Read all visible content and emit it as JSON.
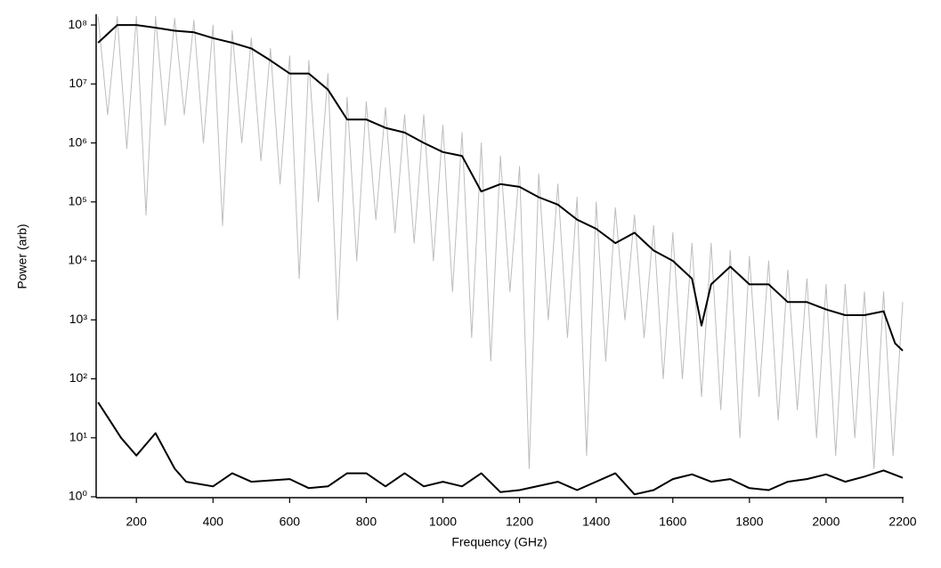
{
  "chart_data": {
    "type": "line",
    "log_y": true,
    "xlabel": "Frequency (GHz)",
    "ylabel": "Power (arb)",
    "xlim": [
      95,
      2200
    ],
    "xticks": [
      200,
      400,
      600,
      800,
      1000,
      1200,
      1400,
      1600,
      1800,
      2000,
      2200
    ],
    "ylim": [
      1,
      150000000
    ],
    "yticks": [
      {
        "value": 1,
        "label": "10⁰"
      },
      {
        "value": 10,
        "label": "10¹"
      },
      {
        "value": 100,
        "label": "10²"
      },
      {
        "value": 1000,
        "label": "10³"
      },
      {
        "value": 10000,
        "label": "10⁴"
      },
      {
        "value": 100000,
        "label": "10⁵"
      },
      {
        "value": 1000000,
        "label": "10⁶"
      },
      {
        "value": 10000000,
        "label": "10⁷"
      },
      {
        "value": 100000000,
        "label": "10⁸"
      }
    ],
    "series": [
      {
        "color": "#bdbdbd",
        "width": 1,
        "x": [
          100,
          125,
          150,
          175,
          200,
          225,
          250,
          275,
          300,
          325,
          350,
          375,
          400,
          425,
          450,
          475,
          500,
          525,
          550,
          575,
          600,
          625,
          650,
          675,
          700,
          725,
          750,
          775,
          800,
          825,
          850,
          875,
          900,
          925,
          950,
          975,
          1000,
          1025,
          1050,
          1075,
          1100,
          1125,
          1150,
          1175,
          1200,
          1225,
          1250,
          1275,
          1300,
          1325,
          1350,
          1375,
          1400,
          1425,
          1450,
          1475,
          1500,
          1525,
          1550,
          1575,
          1600,
          1625,
          1650,
          1675,
          1700,
          1725,
          1750,
          1775,
          1800,
          1825,
          1850,
          1875,
          1900,
          1925,
          1950,
          1975,
          2000,
          2025,
          2050,
          2075,
          2100,
          2125,
          2150,
          2175,
          2200
        ],
        "values": [
          140000000,
          3000000,
          140000000,
          800000,
          140000000,
          60000,
          140000000,
          2000000,
          130000000,
          3000000,
          120000000,
          1000000,
          100000000,
          40000,
          80000000,
          1000000,
          60000000,
          500000,
          40000000,
          200000,
          30000000,
          5000,
          25000000,
          100000,
          15000000,
          1000,
          6000000,
          10000,
          5000000,
          50000,
          4000000,
          30000,
          3000000,
          20000,
          3000000,
          10000,
          2000000,
          3000,
          1500000,
          500,
          1000000,
          200,
          600000,
          3000,
          400000,
          3,
          300000,
          1000,
          200000,
          500,
          120000,
          5,
          100000,
          200,
          80000,
          1000,
          60000,
          500,
          40000,
          100,
          30000,
          100,
          20000,
          50,
          20000,
          30,
          15000,
          10,
          12000,
          50,
          10000,
          20,
          7000,
          30,
          5000,
          10,
          4000,
          5,
          4000,
          10,
          3000,
          3,
          3000,
          5,
          2000
        ]
      },
      {
        "color": "#000000",
        "width": 2,
        "x": [
          100,
          150,
          200,
          250,
          300,
          350,
          400,
          450,
          500,
          550,
          600,
          650,
          700,
          750,
          800,
          850,
          900,
          950,
          1000,
          1050,
          1100,
          1150,
          1200,
          1250,
          1300,
          1350,
          1400,
          1450,
          1500,
          1550,
          1600,
          1650,
          1675,
          1700,
          1750,
          1800,
          1850,
          1900,
          1950,
          2000,
          2050,
          2100,
          2150,
          2180,
          2200
        ],
        "values": [
          50000000,
          100000000,
          100000000,
          90000000,
          80000000,
          75000000,
          60000000,
          50000000,
          40000000,
          25000000,
          15000000,
          15000000,
          8000000,
          2500000,
          2500000,
          1800000,
          1500000,
          1000000,
          700000,
          600000,
          150000,
          200000,
          180000,
          120000,
          90000,
          50000,
          35000,
          20000,
          30000,
          15000,
          10000,
          5000,
          800,
          4000,
          8000,
          4000,
          4000,
          2000,
          2000,
          1500,
          1200,
          1200,
          1400,
          400,
          300
        ]
      },
      {
        "color": "#000000",
        "width": 2,
        "x": [
          100,
          130,
          160,
          200,
          250,
          300,
          330,
          400,
          450,
          500,
          600,
          650,
          700,
          750,
          800,
          850,
          900,
          950,
          1000,
          1050,
          1100,
          1150,
          1200,
          1300,
          1350,
          1450,
          1500,
          1550,
          1600,
          1650,
          1700,
          1750,
          1800,
          1850,
          1900,
          1950,
          2000,
          2050,
          2100,
          2150,
          2200
        ],
        "values": [
          40,
          20,
          10,
          5,
          12,
          3,
          1.8,
          1.5,
          2.5,
          1.8,
          2,
          1.4,
          1.5,
          2.5,
          2.5,
          1.5,
          2.5,
          1.5,
          1.8,
          1.5,
          2.5,
          1.2,
          1.3,
          1.8,
          1.3,
          2.5,
          1.1,
          1.3,
          2,
          2.4,
          1.8,
          2,
          1.4,
          1.3,
          1.8,
          2,
          2.4,
          1.8,
          2.2,
          2.8,
          2.1
        ]
      }
    ]
  }
}
